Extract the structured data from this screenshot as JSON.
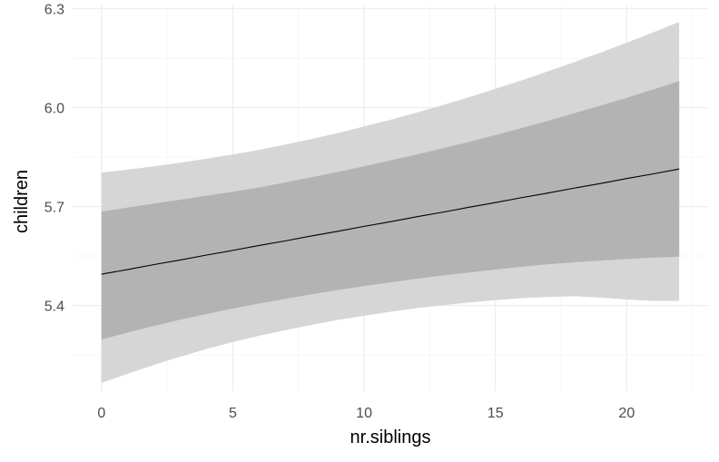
{
  "chart_data": {
    "type": "area",
    "xlabel": "nr.siblings",
    "ylabel": "children",
    "xlim": [
      -1.1,
      23.1
    ],
    "ylim": [
      5.14,
      6.31
    ],
    "x_ticks": [
      0,
      5,
      10,
      15,
      20
    ],
    "x_tick_labels": [
      "0",
      "5",
      "10",
      "15",
      "20"
    ],
    "y_ticks": [
      5.4,
      5.7,
      6.0,
      6.3
    ],
    "y_tick_labels": [
      "5.4",
      "5.7",
      "6.0",
      "6.3"
    ],
    "grid": true,
    "legend": "none",
    "x": [
      0,
      1,
      2,
      3,
      4,
      5,
      6,
      7,
      8,
      9,
      10,
      11,
      12,
      13,
      14,
      15,
      16,
      17,
      18,
      19,
      20,
      21,
      22
    ],
    "series": [
      {
        "role": "fit",
        "values": [
          5.495,
          5.509,
          5.524,
          5.538,
          5.553,
          5.567,
          5.582,
          5.596,
          5.611,
          5.625,
          5.64,
          5.654,
          5.669,
          5.683,
          5.698,
          5.712,
          5.727,
          5.741,
          5.756,
          5.77,
          5.785,
          5.799,
          5.814
        ]
      },
      {
        "role": "inner-interval",
        "lower": [
          5.297,
          5.318,
          5.338,
          5.357,
          5.374,
          5.391,
          5.406,
          5.42,
          5.434,
          5.447,
          5.459,
          5.47,
          5.481,
          5.491,
          5.5,
          5.509,
          5.517,
          5.525,
          5.531,
          5.536,
          5.541,
          5.545,
          5.548
        ],
        "upper": [
          5.685,
          5.697,
          5.709,
          5.721,
          5.733,
          5.745,
          5.758,
          5.773,
          5.789,
          5.805,
          5.822,
          5.84,
          5.858,
          5.877,
          5.896,
          5.917,
          5.938,
          5.96,
          5.983,
          6.006,
          6.03,
          6.055,
          6.08
        ]
      },
      {
        "role": "outer-interval",
        "lower": [
          5.165,
          5.193,
          5.22,
          5.245,
          5.268,
          5.289,
          5.308,
          5.325,
          5.341,
          5.356,
          5.369,
          5.381,
          5.392,
          5.401,
          5.409,
          5.416,
          5.422,
          5.426,
          5.428,
          5.424,
          5.418,
          5.414,
          5.414
        ],
        "upper": [
          5.803,
          5.812,
          5.822,
          5.833,
          5.845,
          5.858,
          5.872,
          5.888,
          5.905,
          5.923,
          5.943,
          5.963,
          5.985,
          6.008,
          6.032,
          6.057,
          6.083,
          6.11,
          6.138,
          6.167,
          6.197,
          6.228,
          6.26
        ]
      }
    ],
    "colors": {
      "outer_band": "#d6d6d6",
      "inner_band": "#b3b3b3",
      "fit_line": "#000000",
      "grid_major": "#ebebeb",
      "grid_minor": "#f5f5f5",
      "tick_text": "#4d4d4d",
      "axis_title": "#000000"
    }
  }
}
